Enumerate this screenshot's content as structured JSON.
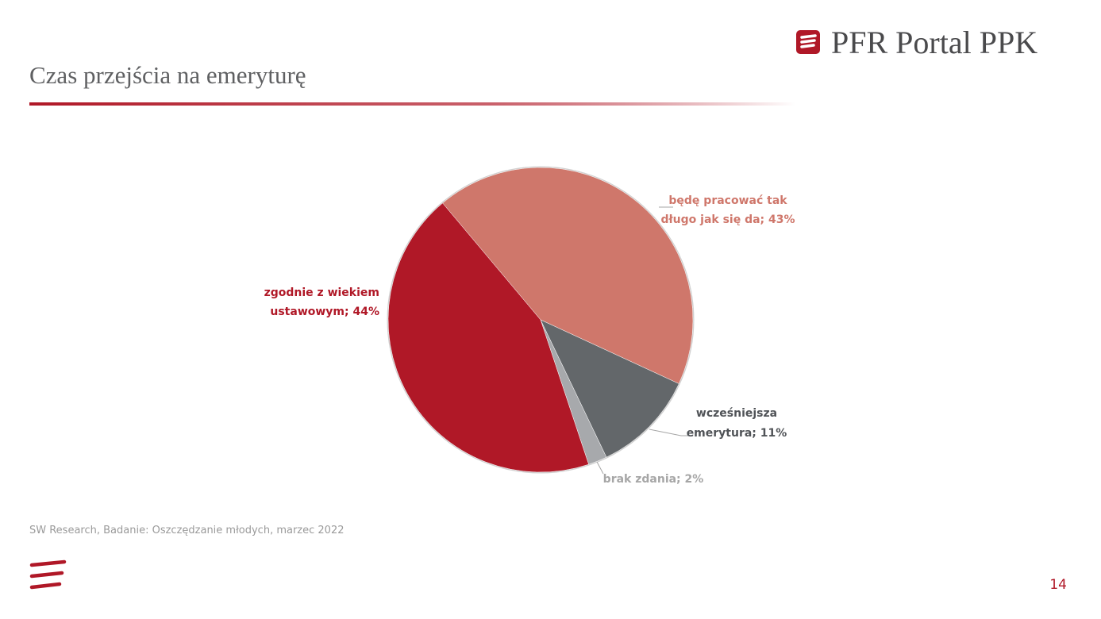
{
  "header": {
    "title": "Czas przejścia na emeryturę",
    "brand": "PFR Portal PPK"
  },
  "chart_data": {
    "type": "pie",
    "categories": [
      "będę pracować tak długo jak się da",
      "wcześniejsza emerytura",
      "brak zdania",
      "zgodnie z wiekiem ustawowym"
    ],
    "values": [
      43,
      11,
      2,
      44
    ],
    "colors": [
      "#cf776b",
      "#63676a",
      "#a7a9ac",
      "#b01827"
    ],
    "data_labels": [
      [
        "będę pracować tak",
        "długo jak się da; 43%"
      ],
      [
        "wcześniejsza",
        "emerytura; 11%"
      ],
      [
        "brak zdania; 2%"
      ],
      [
        "zgodnie z wiekiem",
        "ustawowym; 44%"
      ]
    ]
  },
  "footer": {
    "source": "SW Research, Badanie: Oszczędzanie młodych, marzec 2022",
    "page": "14"
  }
}
